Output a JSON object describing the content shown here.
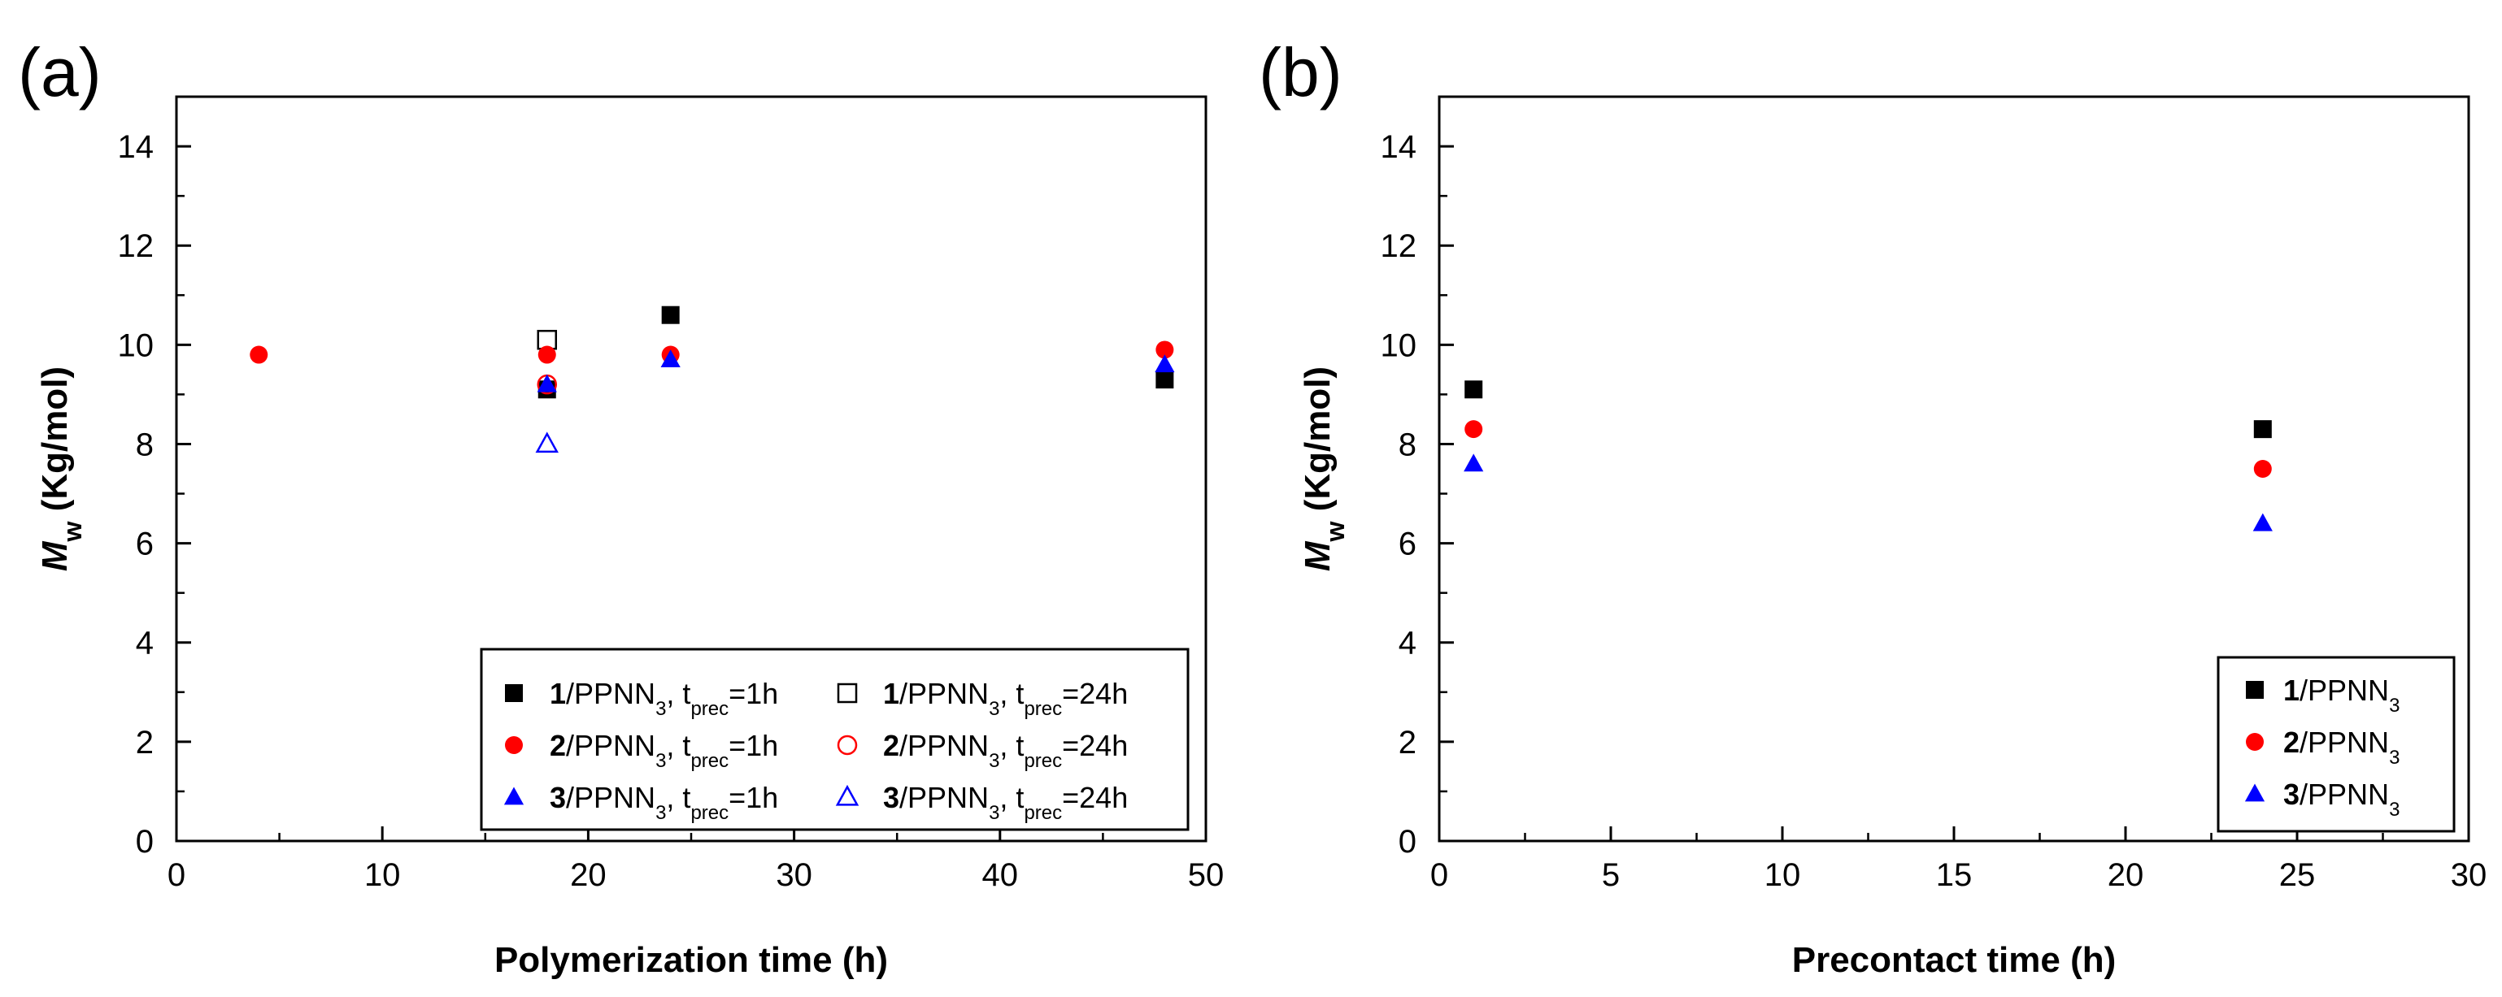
{
  "colors": {
    "black": "#000000",
    "red": "#ff0000",
    "blue": "#0000ff"
  },
  "chart_data": [
    {
      "type": "scatter",
      "panel_label": "(a)",
      "xlabel": "Polymerization time (h)",
      "ylabel": {
        "symbol": "M",
        "subscript": "w",
        "rest": " (Kg/mol)"
      },
      "xlim": [
        0,
        50
      ],
      "ylim": [
        0,
        15
      ],
      "xticks": [
        0,
        10,
        20,
        30,
        40,
        50
      ],
      "yticks": [
        0,
        2,
        4,
        6,
        8,
        10,
        12,
        14
      ],
      "legend_position": "bottom-right",
      "series": [
        {
          "name": "1/PPNN3, tprec=1h",
          "marker": "square",
          "filled": true,
          "color": "#000000",
          "x": [
            18,
            24,
            48
          ],
          "y": [
            9.1,
            10.6,
            9.3
          ]
        },
        {
          "name": "1/PPNN3, tprec=24h",
          "marker": "square",
          "filled": false,
          "color": "#000000",
          "x": [
            18
          ],
          "y": [
            10.1
          ]
        },
        {
          "name": "2/PPNN3, tprec=1h",
          "marker": "circle",
          "filled": true,
          "color": "#ff0000",
          "x": [
            4,
            18,
            24,
            48
          ],
          "y": [
            9.8,
            9.8,
            9.8,
            9.9
          ]
        },
        {
          "name": "2/PPNN3, tprec=24h",
          "marker": "circle",
          "filled": false,
          "color": "#ff0000",
          "x": [
            18
          ],
          "y": [
            9.2
          ]
        },
        {
          "name": "3/PPNN3, tprec=1h",
          "marker": "triangle",
          "filled": true,
          "color": "#0000ff",
          "x": [
            18,
            24,
            48
          ],
          "y": [
            9.2,
            9.7,
            9.6
          ]
        },
        {
          "name": "3/PPNN3, tprec=24h",
          "marker": "triangle",
          "filled": false,
          "color": "#0000ff",
          "x": [
            18
          ],
          "y": [
            8.0
          ]
        }
      ],
      "legend_entries": [
        {
          "bold": "1",
          "text": "/PPNN",
          "sub": "3",
          "text2": ", t",
          "sub2": "prec",
          "text3": "=1h"
        },
        {
          "bold": "1",
          "text": "/PPNN",
          "sub": "3",
          "text2": ", t",
          "sub2": "prec",
          "text3": "=24h"
        },
        {
          "bold": "2",
          "text": "/PPNN",
          "sub": "3",
          "text2": ", t",
          "sub2": "prec",
          "text3": "=1h"
        },
        {
          "bold": "2",
          "text": "/PPNN",
          "sub": "3",
          "text2": ", t",
          "sub2": "prec",
          "text3": "=24h"
        },
        {
          "bold": "3",
          "text": "/PPNN",
          "sub": "3",
          "text2": ", t",
          "sub2": "prec",
          "text3": "=1h"
        },
        {
          "bold": "3",
          "text": "/PPNN",
          "sub": "3",
          "text2": ", t",
          "sub2": "prec",
          "text3": "=24h"
        }
      ]
    },
    {
      "type": "scatter",
      "panel_label": "(b)",
      "xlabel": "Precontact time (h)",
      "ylabel": {
        "symbol": "M",
        "subscript": "w",
        "rest": " (Kg/mol)"
      },
      "xlim": [
        0,
        30
      ],
      "ylim": [
        0,
        15
      ],
      "xticks": [
        0,
        5,
        10,
        15,
        20,
        25,
        30
      ],
      "yticks": [
        0,
        2,
        4,
        6,
        8,
        10,
        12,
        14
      ],
      "legend_position": "bottom-right",
      "series": [
        {
          "name": "1/PPNN3",
          "marker": "square",
          "filled": true,
          "color": "#000000",
          "x": [
            1,
            24
          ],
          "y": [
            9.1,
            8.3
          ]
        },
        {
          "name": "2/PPNN3",
          "marker": "circle",
          "filled": true,
          "color": "#ff0000",
          "x": [
            1,
            24
          ],
          "y": [
            8.3,
            7.5
          ]
        },
        {
          "name": "3/PPNN3",
          "marker": "triangle",
          "filled": true,
          "color": "#0000ff",
          "x": [
            1,
            24
          ],
          "y": [
            7.6,
            6.4
          ]
        }
      ],
      "legend_entries": [
        {
          "bold": "1",
          "text": "/PPNN",
          "sub": "3"
        },
        {
          "bold": "2",
          "text": "/PPNN",
          "sub": "3"
        },
        {
          "bold": "3",
          "text": "/PPNN",
          "sub": "3"
        }
      ]
    }
  ]
}
